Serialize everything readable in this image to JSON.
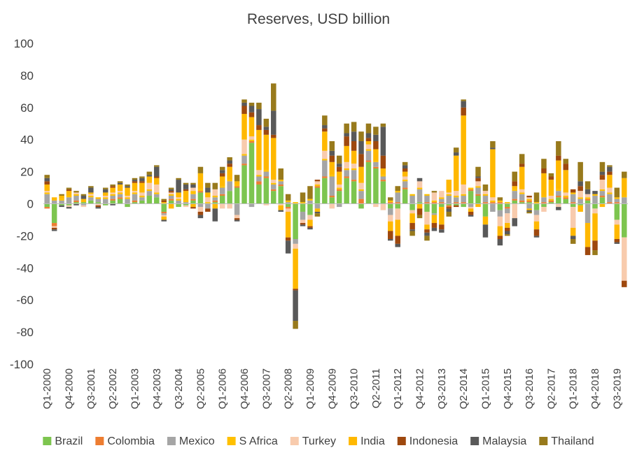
{
  "chart_data": {
    "type": "bar",
    "stacked": true,
    "title": "Reserves, USD billion",
    "ylim": [
      -100,
      100
    ],
    "yticks": [
      -100,
      -80,
      -60,
      -40,
      -20,
      0,
      20,
      40,
      60,
      80,
      100
    ],
    "grid": false,
    "legend_position": "bottom",
    "x_tick_labels": [
      "Q1-2000",
      "Q4-2000",
      "Q3-2001",
      "Q2-2002",
      "Q1-2003",
      "Q4-2003",
      "Q3-2004",
      "Q2-2005",
      "Q1-2006",
      "Q4-2006",
      "Q3-2007",
      "Q2-2008",
      "Q1-2009",
      "Q4-2009",
      "Q3-2010",
      "Q2-2011",
      "Q1-2012",
      "Q4-2012",
      "Q3-2013",
      "Q2-2014",
      "Q1-2015",
      "Q4-2015",
      "Q3-2016",
      "Q2-2017",
      "Q1-2018",
      "Q4-2018",
      "Q3-2019"
    ],
    "x_tick_every": 3,
    "categories": [
      "Q1-2000",
      "Q2-2000",
      "Q3-2000",
      "Q4-2000",
      "Q1-2001",
      "Q2-2001",
      "Q3-2001",
      "Q4-2001",
      "Q1-2002",
      "Q2-2002",
      "Q3-2002",
      "Q4-2002",
      "Q1-2003",
      "Q2-2003",
      "Q3-2003",
      "Q4-2003",
      "Q1-2004",
      "Q2-2004",
      "Q3-2004",
      "Q4-2004",
      "Q1-2005",
      "Q2-2005",
      "Q3-2005",
      "Q4-2005",
      "Q1-2006",
      "Q2-2006",
      "Q3-2006",
      "Q4-2006",
      "Q1-2007",
      "Q2-2007",
      "Q3-2007",
      "Q4-2007",
      "Q1-2008",
      "Q2-2008",
      "Q3-2008",
      "Q4-2008",
      "Q1-2009",
      "Q2-2009",
      "Q3-2009",
      "Q4-2009",
      "Q1-2010",
      "Q2-2010",
      "Q3-2010",
      "Q4-2010",
      "Q1-2011",
      "Q2-2011",
      "Q3-2011",
      "Q4-2011",
      "Q1-2012",
      "Q2-2012",
      "Q3-2012",
      "Q4-2012",
      "Q1-2013",
      "Q2-2013",
      "Q3-2013",
      "Q4-2013",
      "Q1-2014",
      "Q2-2014",
      "Q3-2014",
      "Q4-2014",
      "Q1-2015",
      "Q2-2015",
      "Q3-2015",
      "Q4-2015",
      "Q1-2016",
      "Q2-2016",
      "Q3-2016",
      "Q4-2016",
      "Q1-2017",
      "Q2-2017",
      "Q3-2017",
      "Q4-2017",
      "Q1-2018",
      "Q2-2018",
      "Q3-2018",
      "Q4-2018",
      "Q1-2019",
      "Q2-2019",
      "Q3-2019",
      "Q4-2019"
    ],
    "series": [
      {
        "name": "Brazil",
        "color": "#7dc54f",
        "values": [
          -2,
          -12,
          -1,
          -1,
          1,
          1,
          2,
          1,
          -1,
          2,
          3,
          -2,
          1,
          2,
          5,
          4,
          -5,
          2,
          -2,
          -1,
          2,
          7,
          0,
          1,
          5,
          8,
          10,
          24,
          38,
          12,
          16,
          8,
          11,
          -2,
          -22,
          -5,
          -7,
          10,
          16,
          4,
          8,
          16,
          14,
          -3,
          26,
          22,
          14,
          -3,
          -3,
          9,
          -4,
          1,
          -5,
          -6,
          -2,
          -1,
          -1,
          -2,
          8,
          5,
          -8,
          0,
          -4,
          -2,
          2,
          1,
          1,
          -4,
          -2,
          1,
          4,
          3,
          -2,
          -1,
          2,
          -3,
          4,
          0,
          -10,
          -21
        ]
      },
      {
        "name": "Colombia",
        "color": "#ed7d31",
        "values": [
          -1,
          -2,
          0,
          0,
          1,
          0,
          0,
          0,
          0,
          1,
          1,
          0,
          1,
          0,
          0,
          0,
          -1,
          1,
          0,
          0,
          1,
          1,
          0,
          1,
          1,
          0,
          1,
          1,
          1,
          2,
          1,
          1,
          1,
          -1,
          0,
          0,
          0,
          1,
          1,
          1,
          1,
          1,
          1,
          3,
          1,
          1,
          1,
          1,
          1,
          1,
          0,
          0,
          1,
          1,
          1,
          -1,
          1,
          1,
          1,
          1,
          1,
          1,
          1,
          -1,
          1,
          1,
          1,
          0,
          1,
          1,
          1,
          1,
          1,
          0,
          1,
          0,
          1,
          1,
          1,
          0
        ]
      },
      {
        "name": "Mexico",
        "color": "#a5a5a5",
        "values": [
          6,
          2,
          2,
          4,
          3,
          -1,
          2,
          2,
          3,
          2,
          2,
          3,
          4,
          2,
          3,
          2,
          -1,
          2,
          2,
          1,
          3,
          -2,
          -3,
          2,
          4,
          6,
          -7,
          5,
          -2,
          3,
          3,
          3,
          2,
          1,
          -3,
          -5,
          2,
          -3,
          10,
          12,
          -2,
          4,
          6,
          5,
          6,
          3,
          2,
          -4,
          6,
          4,
          5,
          8,
          4,
          -1,
          2,
          5,
          3,
          4,
          -2,
          4,
          4,
          -5,
          -4,
          -3,
          5,
          4,
          -3,
          -3,
          3,
          0,
          3,
          0,
          5,
          3,
          -12,
          5,
          3,
          5,
          2,
          4
        ]
      },
      {
        "name": "S Africa",
        "color": "#ffc000",
        "values": [
          1,
          0,
          1,
          1,
          1,
          0,
          1,
          0,
          1,
          1,
          1,
          1,
          1,
          1,
          1,
          1,
          1,
          1,
          1,
          1,
          2,
          1,
          1,
          1,
          1,
          1,
          1,
          1,
          1,
          1,
          1,
          1,
          1,
          1,
          1,
          1,
          1,
          1,
          1,
          1,
          1,
          1,
          1,
          1,
          1,
          1,
          1,
          1,
          1,
          1,
          1,
          1,
          1,
          1,
          1,
          1,
          1,
          1,
          1,
          1,
          1,
          1,
          1,
          1,
          1,
          1,
          1,
          1,
          1,
          1,
          1,
          1,
          1,
          1,
          1,
          1,
          1,
          1,
          1,
          1
        ]
      },
      {
        "name": "Turkey",
        "color": "#f8cbad",
        "values": [
          1,
          -1,
          0,
          -1,
          1,
          -1,
          1,
          -1,
          1,
          1,
          1,
          1,
          1,
          2,
          4,
          5,
          -1,
          1,
          1,
          -1,
          2,
          -3,
          3,
          4,
          -3,
          -3,
          -2,
          9,
          2,
          3,
          -1,
          2,
          -1,
          -2,
          -3,
          -2,
          -3,
          2,
          5,
          -3,
          2,
          4,
          3,
          4,
          3,
          -2,
          -4,
          -4,
          -7,
          2,
          -2,
          4,
          -8,
          5,
          4,
          1,
          3,
          6,
          -1,
          3,
          2,
          2,
          -6,
          -6,
          -9,
          2,
          1,
          -4,
          -3,
          2,
          -2,
          2,
          -13,
          4,
          2,
          -3,
          6,
          3,
          -3,
          -27
        ]
      },
      {
        "name": "India",
        "color": "#ffb800",
        "values": [
          4,
          2,
          2,
          3,
          0,
          2,
          1,
          1,
          2,
          3,
          4,
          5,
          5,
          6,
          4,
          4,
          -2,
          -3,
          3,
          6,
          -2,
          10,
          3,
          -3,
          6,
          8,
          2,
          16,
          12,
          25,
          22,
          26,
          -3,
          -16,
          -25,
          0,
          -4,
          -2,
          12,
          8,
          8,
          10,
          8,
          10,
          2,
          7,
          4,
          -6,
          -10,
          3,
          -6,
          -3,
          -3,
          -5,
          -11,
          8,
          22,
          43,
          -2,
          -2,
          -5,
          30,
          -6,
          -3,
          2,
          14,
          -1,
          -5,
          14,
          10,
          18,
          14,
          -5,
          -4,
          -15,
          -17,
          -2,
          8,
          -9,
          11
        ]
      },
      {
        "name": "Indonesia",
        "color": "#9e480e",
        "values": [
          2,
          -1,
          0,
          1,
          0,
          0,
          0,
          -1,
          0,
          1,
          0,
          0,
          1,
          1,
          0,
          1,
          1,
          1,
          0,
          1,
          -1,
          -2,
          -2,
          0,
          2,
          2,
          -1,
          5,
          3,
          3,
          3,
          2,
          0,
          -2,
          -1,
          -1,
          -1,
          1,
          2,
          4,
          3,
          6,
          6,
          8,
          2,
          5,
          8,
          -5,
          -5,
          2,
          -4,
          -4,
          -2,
          -3,
          -3,
          -1,
          -1,
          5,
          -2,
          2,
          0,
          0,
          -2,
          -2,
          3,
          2,
          1,
          -4,
          3,
          2,
          3,
          4,
          2,
          3,
          -5,
          -6,
          3,
          2,
          -2,
          -4
        ]
      },
      {
        "name": "Malaysia",
        "color": "#595959",
        "values": [
          2,
          -1,
          -1,
          -1,
          -1,
          2,
          3,
          -1,
          2,
          -1,
          1,
          1,
          1,
          2,
          1,
          6,
          -1,
          1,
          8,
          3,
          2,
          -2,
          3,
          -8,
          2,
          2,
          -1,
          2,
          4,
          10,
          2,
          15,
          -1,
          -8,
          -19,
          -1,
          -1,
          -1,
          2,
          3,
          2,
          2,
          6,
          8,
          3,
          4,
          18,
          -1,
          -2,
          2,
          -1,
          2,
          -2,
          -2,
          -2,
          -2,
          2,
          4,
          -1,
          1,
          -8,
          1,
          -4,
          -2,
          -5,
          0,
          -1,
          -1,
          0,
          0,
          -2,
          0,
          -2,
          3,
          3,
          2,
          2,
          3,
          -1,
          0
        ]
      },
      {
        "name": "Thailand",
        "color": "#987a1c",
        "values": [
          2,
          0,
          1,
          1,
          1,
          1,
          1,
          0,
          1,
          1,
          1,
          1,
          1,
          1,
          2,
          1,
          1,
          1,
          1,
          1,
          1,
          4,
          3,
          4,
          2,
          2,
          4,
          2,
          2,
          4,
          5,
          17,
          7,
          4,
          -5,
          6,
          8,
          -2,
          6,
          6,
          5,
          6,
          6,
          6,
          6,
          5,
          2,
          2,
          3,
          2,
          -3,
          -2,
          -3,
          1,
          0,
          -3,
          3,
          1,
          0,
          6,
          4,
          4,
          2,
          -1,
          6,
          6,
          -1,
          6,
          6,
          2,
          9,
          3,
          -3,
          12,
          5,
          -3,
          6,
          1,
          6,
          4
        ]
      }
    ]
  }
}
